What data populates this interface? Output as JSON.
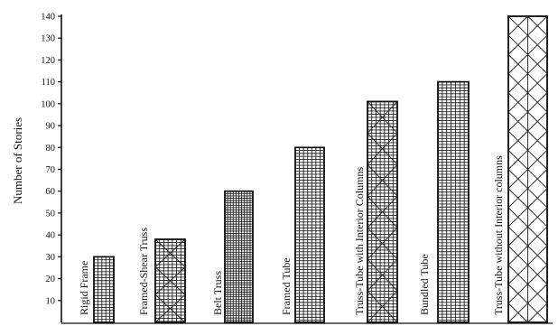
{
  "chart_data": {
    "type": "bar",
    "title": "",
    "xlabel": "",
    "ylabel": "Number of Stories",
    "ylim": [
      0,
      140
    ],
    "yticks": [
      10,
      20,
      30,
      40,
      50,
      60,
      70,
      80,
      90,
      100,
      110,
      120,
      130,
      140
    ],
    "grid": false,
    "legend": "none",
    "categories": [
      "Rigid Frame",
      "Framed-Shear Truss",
      "Belt Truss",
      "Framed Tube",
      "Truss-Tube with Interior Columns",
      "Bundled Tube",
      "Truss-Tube without Interior columns"
    ],
    "values": [
      30,
      38,
      60,
      80,
      101,
      110,
      140
    ],
    "bar_patterns": [
      "grid",
      "grid-x",
      "grid-dense",
      "grid",
      "grid-x",
      "grid",
      "x-large"
    ],
    "colors": {
      "ink": "#111111",
      "background": "#ffffff"
    }
  }
}
